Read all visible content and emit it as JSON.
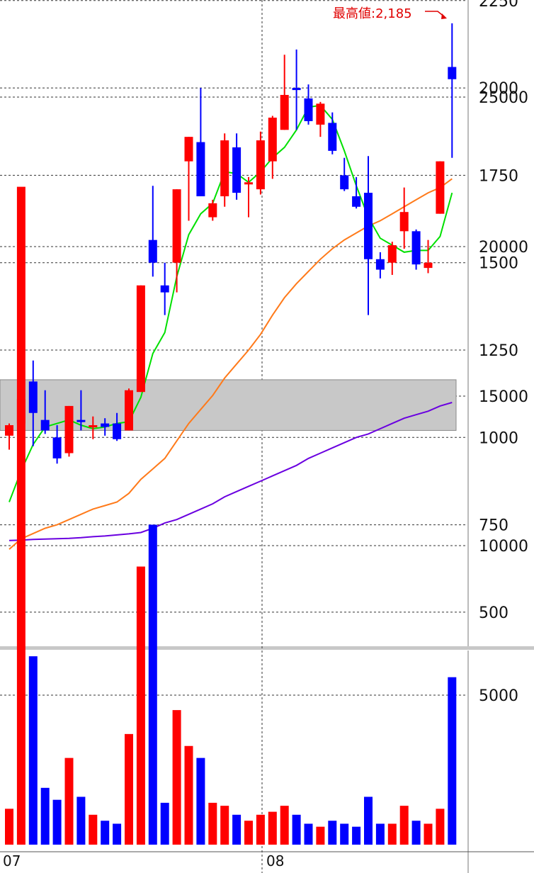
{
  "colors": {
    "up": "#ff0000",
    "down": "#0000ff",
    "ma_short": "#00e000",
    "ma_mid": "#ff7a1a",
    "ma_long": "#6a00e0",
    "band": "#c8c8c8",
    "grid": "#333333"
  },
  "chart_data": [
    {
      "type": "candlestick",
      "title": "",
      "y_ticks": [
        "2250",
        "2000",
        "1750",
        "1500",
        "1250",
        "1000",
        "750",
        "500"
      ],
      "ylim": [
        425,
        2270
      ],
      "grid": true,
      "annotation": {
        "label": "最高値:2,185",
        "value": 2185
      },
      "band": {
        "low": 1020,
        "high": 1165
      },
      "candles": [
        {
          "o": 1005,
          "h": 1040,
          "l": 965,
          "c": 1035
        },
        {
          "o": 1040,
          "h": 1340,
          "l": 960,
          "c": 1110
        },
        {
          "o": 1160,
          "h": 1220,
          "l": 975,
          "c": 1070
        },
        {
          "o": 1050,
          "h": 1135,
          "l": 1010,
          "c": 1020
        },
        {
          "o": 1000,
          "h": 1035,
          "l": 925,
          "c": 940
        },
        {
          "o": 955,
          "h": 1090,
          "l": 945,
          "c": 1090
        },
        {
          "o": 1050,
          "h": 1135,
          "l": 1020,
          "c": 1045
        },
        {
          "o": 1035,
          "h": 1060,
          "l": 995,
          "c": 1035
        },
        {
          "o": 1040,
          "h": 1055,
          "l": 1005,
          "c": 1030
        },
        {
          "o": 1040,
          "h": 1070,
          "l": 990,
          "c": 995
        },
        {
          "o": 1020,
          "h": 1140,
          "l": 1020,
          "c": 1135
        },
        {
          "o": 1130,
          "h": 1435,
          "l": 1130,
          "c": 1435
        },
        {
          "o": 1565,
          "h": 1720,
          "l": 1460,
          "c": 1500
        },
        {
          "o": 1435,
          "h": 1500,
          "l": 1350,
          "c": 1415
        },
        {
          "o": 1500,
          "h": 1710,
          "l": 1415,
          "c": 1710
        },
        {
          "o": 1790,
          "h": 1860,
          "l": 1620,
          "c": 1860
        },
        {
          "o": 1845,
          "h": 2000,
          "l": 1690,
          "c": 1690
        },
        {
          "o": 1630,
          "h": 1680,
          "l": 1620,
          "c": 1670
        },
        {
          "o": 1690,
          "h": 1870,
          "l": 1660,
          "c": 1850
        },
        {
          "o": 1830,
          "h": 1870,
          "l": 1680,
          "c": 1700
        },
        {
          "o": 1730,
          "h": 1745,
          "l": 1630,
          "c": 1730
        },
        {
          "o": 1710,
          "h": 1875,
          "l": 1695,
          "c": 1850
        },
        {
          "o": 1790,
          "h": 1920,
          "l": 1740,
          "c": 1915
        },
        {
          "o": 1880,
          "h": 2095,
          "l": 1880,
          "c": 1980
        },
        {
          "o": 2000,
          "h": 2110,
          "l": 1880,
          "c": 1995
        },
        {
          "o": 1970,
          "h": 2010,
          "l": 1895,
          "c": 1905
        },
        {
          "o": 1895,
          "h": 1960,
          "l": 1860,
          "c": 1955
        },
        {
          "o": 1900,
          "h": 1930,
          "l": 1810,
          "c": 1820
        },
        {
          "o": 1750,
          "h": 1800,
          "l": 1705,
          "c": 1710
        },
        {
          "o": 1690,
          "h": 1745,
          "l": 1655,
          "c": 1660
        },
        {
          "o": 1700,
          "h": 1805,
          "l": 1350,
          "c": 1510
        },
        {
          "o": 1510,
          "h": 1530,
          "l": 1455,
          "c": 1480
        },
        {
          "o": 1500,
          "h": 1560,
          "l": 1465,
          "c": 1550
        },
        {
          "o": 1590,
          "h": 1715,
          "l": 1540,
          "c": 1645
        },
        {
          "o": 1590,
          "h": 1595,
          "l": 1480,
          "c": 1495
        },
        {
          "o": 1485,
          "h": 1565,
          "l": 1470,
          "c": 1500
        },
        {
          "o": 1640,
          "h": 1790,
          "l": 1640,
          "c": 1790
        },
        {
          "o": 2060,
          "h": 2185,
          "l": 1800,
          "c": 2025
        }
      ],
      "ma_short": [
        815,
        905,
        980,
        1030,
        1040,
        1050,
        1035,
        1025,
        1030,
        1040,
        1045,
        1115,
        1240,
        1300,
        1460,
        1580,
        1640,
        1670,
        1760,
        1755,
        1730,
        1760,
        1800,
        1830,
        1880,
        1945,
        1950,
        1910,
        1820,
        1720,
        1630,
        1570,
        1550,
        1530,
        1535,
        1535,
        1575,
        1700
      ],
      "ma_mid": [
        680,
        710,
        725,
        740,
        750,
        765,
        780,
        795,
        805,
        815,
        840,
        880,
        910,
        940,
        990,
        1040,
        1080,
        1120,
        1170,
        1210,
        1250,
        1295,
        1350,
        1400,
        1440,
        1475,
        1510,
        1540,
        1565,
        1585,
        1605,
        1620,
        1640,
        1660,
        1680,
        1700,
        1715,
        1740
      ],
      "ma_long": [
        705,
        706,
        708,
        709,
        710,
        711,
        713,
        716,
        718,
        721,
        724,
        728,
        740,
        755,
        765,
        780,
        795,
        810,
        830,
        845,
        860,
        875,
        890,
        905,
        920,
        940,
        955,
        970,
        985,
        1000,
        1010,
        1025,
        1040,
        1055,
        1065,
        1075,
        1090,
        1100
      ]
    },
    {
      "type": "bar",
      "title": "",
      "y_ticks": [
        "25000",
        "20000",
        "15000",
        "10000",
        "5000"
      ],
      "ylim": [
        0,
        25000
      ],
      "grid": true,
      "values": [
        1200,
        22000,
        6300,
        1900,
        1500,
        2900,
        1600,
        1000,
        800,
        700,
        3700,
        9300,
        10700,
        1400,
        4500,
        3300,
        2900,
        1400,
        1300,
        1000,
        800,
        1000,
        1100,
        1300,
        1000,
        700,
        600,
        800,
        700,
        600,
        1600,
        700,
        700,
        1300,
        800,
        700,
        1200,
        5600
      ]
    }
  ],
  "x_axis": {
    "labels": [
      "07",
      "08"
    ]
  }
}
